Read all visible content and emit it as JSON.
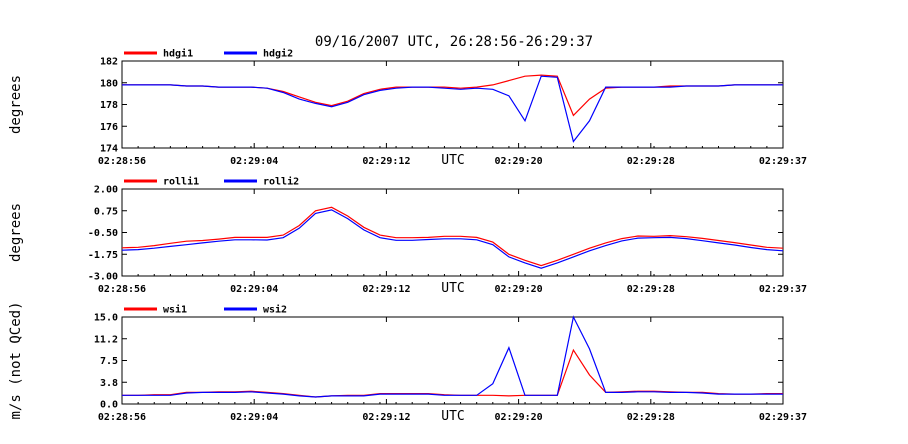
{
  "title": "09/16/2007  UTC, 26:28:56-26:29:37",
  "x_ticks": [
    "02:28:56",
    "02:29:04",
    "02:29:12",
    "02:29:20",
    "02:29:28",
    "02:29:37"
  ],
  "x_unit": "UTC",
  "colors": {
    "red": "#ff0000",
    "blue": "#0000ff"
  },
  "chart_data": [
    {
      "type": "line",
      "ylabel": "degrees",
      "ylim": [
        174,
        182
      ],
      "yticks": [
        "174",
        "176",
        "178",
        "180",
        "182"
      ],
      "x_seconds_range": [
        0,
        41
      ],
      "grid": false,
      "legend_placement": "top-left",
      "series": [
        {
          "name": "hdgi1",
          "color": "#ff0000",
          "x": [
            0,
            1,
            2,
            3,
            4,
            5,
            6,
            7,
            8,
            9,
            10,
            11,
            12,
            13,
            14,
            15,
            16,
            17,
            18,
            19,
            20,
            21,
            22,
            23,
            24,
            25,
            26,
            27,
            28,
            29,
            30,
            31,
            32,
            33,
            34,
            35,
            36,
            37,
            38,
            39,
            40,
            41
          ],
          "values": [
            179.8,
            179.8,
            179.8,
            179.8,
            179.7,
            179.7,
            179.6,
            179.6,
            179.6,
            179.5,
            179.2,
            178.7,
            178.2,
            177.9,
            178.3,
            179.0,
            179.4,
            179.6,
            179.6,
            179.6,
            179.6,
            179.5,
            179.6,
            179.8,
            180.2,
            180.6,
            180.7,
            180.6,
            177.0,
            178.5,
            179.5,
            179.6,
            179.6,
            179.6,
            179.7,
            179.7,
            179.7,
            179.7,
            179.8,
            179.8,
            179.8,
            179.8
          ]
        },
        {
          "name": "hdgi2",
          "color": "#0000ff",
          "x": [
            0,
            1,
            2,
            3,
            4,
            5,
            6,
            7,
            8,
            9,
            10,
            11,
            12,
            13,
            14,
            15,
            16,
            17,
            18,
            19,
            20,
            21,
            22,
            23,
            24,
            25,
            26,
            27,
            28,
            29,
            30,
            31,
            32,
            33,
            34,
            35,
            36,
            37,
            38,
            39,
            40,
            41
          ],
          "values": [
            179.8,
            179.8,
            179.8,
            179.8,
            179.7,
            179.7,
            179.6,
            179.6,
            179.6,
            179.5,
            179.1,
            178.5,
            178.1,
            177.8,
            178.2,
            178.9,
            179.3,
            179.5,
            179.6,
            179.6,
            179.5,
            179.4,
            179.5,
            179.4,
            178.8,
            176.5,
            180.6,
            180.5,
            174.6,
            176.5,
            179.6,
            179.6,
            179.6,
            179.6,
            179.6,
            179.7,
            179.7,
            179.7,
            179.8,
            179.8,
            179.8,
            179.8
          ]
        }
      ]
    },
    {
      "type": "line",
      "ylabel": "degrees",
      "ylim": [
        -3.0,
        2.0
      ],
      "yticks": [
        "-3.00",
        "-1.75",
        "-0.50",
        "0.75",
        "2.00"
      ],
      "x_seconds_range": [
        0,
        41
      ],
      "grid": false,
      "legend_placement": "top-left",
      "series": [
        {
          "name": "rolli1",
          "color": "#ff0000",
          "x": [
            0,
            1,
            2,
            3,
            4,
            5,
            6,
            7,
            8,
            9,
            10,
            11,
            12,
            13,
            14,
            15,
            16,
            17,
            18,
            19,
            20,
            21,
            22,
            23,
            24,
            25,
            26,
            27,
            28,
            29,
            30,
            31,
            32,
            33,
            34,
            35,
            36,
            37,
            38,
            39,
            40,
            41
          ],
          "values": [
            -1.38,
            -1.35,
            -1.25,
            -1.12,
            -1.0,
            -0.96,
            -0.88,
            -0.78,
            -0.78,
            -0.78,
            -0.65,
            -0.1,
            0.75,
            0.95,
            0.45,
            -0.2,
            -0.65,
            -0.8,
            -0.8,
            -0.78,
            -0.72,
            -0.72,
            -0.78,
            -1.05,
            -1.75,
            -2.1,
            -2.4,
            -2.1,
            -1.75,
            -1.4,
            -1.1,
            -0.85,
            -0.7,
            -0.72,
            -0.68,
            -0.74,
            -0.84,
            -0.96,
            -1.08,
            -1.22,
            -1.35,
            -1.4
          ]
        },
        {
          "name": "rolli2",
          "color": "#0000ff",
          "x": [
            0,
            1,
            2,
            3,
            4,
            5,
            6,
            7,
            8,
            9,
            10,
            11,
            12,
            13,
            14,
            15,
            16,
            17,
            18,
            19,
            20,
            21,
            22,
            23,
            24,
            25,
            26,
            27,
            28,
            29,
            30,
            31,
            32,
            33,
            34,
            35,
            36,
            37,
            38,
            39,
            40,
            41
          ],
          "values": [
            -1.52,
            -1.48,
            -1.4,
            -1.3,
            -1.2,
            -1.1,
            -1.0,
            -0.92,
            -0.92,
            -0.93,
            -0.8,
            -0.25,
            0.6,
            0.8,
            0.3,
            -0.35,
            -0.8,
            -0.95,
            -0.95,
            -0.9,
            -0.86,
            -0.86,
            -0.92,
            -1.2,
            -1.9,
            -2.25,
            -2.55,
            -2.25,
            -1.9,
            -1.55,
            -1.25,
            -0.98,
            -0.82,
            -0.8,
            -0.78,
            -0.85,
            -0.97,
            -1.1,
            -1.22,
            -1.36,
            -1.48,
            -1.55
          ]
        }
      ]
    },
    {
      "type": "line",
      "ylabel": "m/s (not QCed)",
      "ylim": [
        0,
        15
      ],
      "yticks": [
        "0.0",
        "3.8",
        "7.5",
        "11.2",
        "15.0"
      ],
      "x_seconds_range": [
        0,
        41
      ],
      "grid": false,
      "legend_placement": "top-left",
      "series": [
        {
          "name": "wsi1",
          "color": "#ff0000",
          "x": [
            0,
            1,
            2,
            3,
            4,
            5,
            6,
            7,
            8,
            9,
            10,
            11,
            12,
            13,
            14,
            15,
            16,
            17,
            18,
            19,
            20,
            21,
            22,
            23,
            24,
            25,
            26,
            27,
            28,
            29,
            30,
            31,
            32,
            33,
            34,
            35,
            36,
            37,
            38,
            39,
            40,
            41
          ],
          "values": [
            1.5,
            1.5,
            1.6,
            1.6,
            2.0,
            2.0,
            2.1,
            2.1,
            2.2,
            2.0,
            1.8,
            1.5,
            1.2,
            1.4,
            1.5,
            1.5,
            1.8,
            1.8,
            1.8,
            1.8,
            1.6,
            1.5,
            1.5,
            1.5,
            1.4,
            1.5,
            1.5,
            1.5,
            9.3,
            5.0,
            2.0,
            2.1,
            2.2,
            2.2,
            2.1,
            2.0,
            2.0,
            1.8,
            1.7,
            1.7,
            1.8,
            1.8
          ]
        },
        {
          "name": "wsi2",
          "color": "#0000ff",
          "x": [
            0,
            1,
            2,
            3,
            4,
            5,
            6,
            7,
            8,
            9,
            10,
            11,
            12,
            13,
            14,
            15,
            16,
            17,
            18,
            19,
            20,
            21,
            22,
            23,
            24,
            25,
            26,
            27,
            28,
            29,
            30,
            31,
            32,
            33,
            34,
            35,
            36,
            37,
            38,
            39,
            40,
            41
          ],
          "values": [
            1.5,
            1.5,
            1.5,
            1.5,
            1.9,
            2.0,
            2.0,
            2.0,
            2.1,
            1.9,
            1.7,
            1.4,
            1.2,
            1.4,
            1.4,
            1.4,
            1.7,
            1.7,
            1.7,
            1.7,
            1.5,
            1.5,
            1.5,
            3.5,
            9.7,
            1.5,
            1.5,
            1.5,
            15.0,
            9.5,
            2.0,
            2.0,
            2.1,
            2.1,
            2.0,
            2.0,
            1.9,
            1.7,
            1.7,
            1.7,
            1.7,
            1.7
          ]
        }
      ]
    }
  ]
}
